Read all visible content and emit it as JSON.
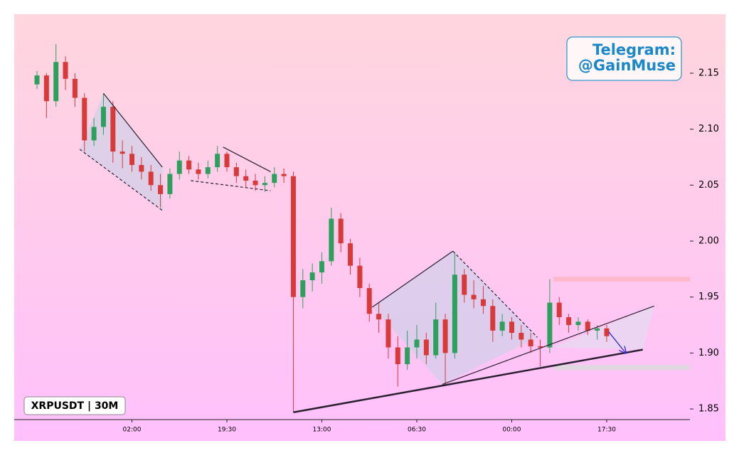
{
  "chart_data": {
    "type": "candlestick",
    "title": "XRPUSDT | 30M",
    "annotation": [
      "Telegram:",
      "@GainMuse"
    ],
    "categories": [
      null,
      null,
      null,
      null,
      null,
      null,
      null,
      null,
      null,
      null,
      "02:00",
      null,
      null,
      null,
      null,
      null,
      null,
      null,
      null,
      null,
      "19:30",
      null,
      null,
      null,
      null,
      null,
      null,
      null,
      null,
      null,
      "13:00",
      null,
      null,
      null,
      null,
      null,
      null,
      null,
      null,
      null,
      "06:30",
      null,
      null,
      null,
      null,
      null,
      null,
      null,
      null,
      null,
      "00:00",
      null,
      null,
      null,
      null,
      null,
      null,
      null,
      null,
      null,
      "17:30"
    ],
    "open": [
      2.14,
      2.148,
      2.125,
      2.16,
      2.145,
      2.128,
      2.09,
      2.102,
      2.12,
      2.08,
      2.078,
      2.068,
      2.062,
      2.05,
      2.042,
      2.06,
      2.072,
      2.064,
      2.06,
      2.066,
      2.078,
      2.066,
      2.058,
      2.054,
      2.05,
      2.052,
      2.06,
      2.058,
      1.95,
      1.965,
      1.972,
      1.982,
      2.02,
      1.998,
      1.978,
      1.958,
      1.935,
      1.93,
      1.905,
      1.89,
      1.905,
      1.912,
      1.898,
      1.93,
      1.9,
      1.97,
      1.952,
      1.948,
      1.942,
      1.92,
      1.928,
      1.918,
      1.912,
      1.906,
      1.905,
      1.945,
      1.932,
      1.925,
      1.928,
      1.92,
      1.922
    ],
    "high": [
      2.152,
      2.15,
      2.176,
      2.165,
      2.15,
      2.132,
      2.11,
      2.132,
      2.125,
      2.09,
      2.085,
      2.075,
      2.068,
      2.06,
      2.065,
      2.08,
      2.076,
      2.07,
      2.072,
      2.085,
      2.08,
      2.07,
      2.064,
      2.06,
      2.058,
      2.066,
      2.065,
      2.062,
      1.975,
      1.98,
      1.99,
      2.03,
      2.025,
      2.002,
      1.985,
      1.962,
      1.945,
      1.935,
      1.915,
      1.92,
      1.925,
      1.918,
      1.945,
      1.935,
      1.99,
      1.975,
      1.965,
      1.96,
      1.948,
      1.935,
      1.932,
      1.925,
      1.918,
      1.912,
      1.966,
      1.95,
      1.935,
      1.932,
      1.93,
      1.925,
      1.925
    ],
    "low": [
      2.136,
      2.11,
      2.12,
      2.135,
      2.12,
      2.08,
      2.085,
      2.095,
      2.07,
      2.065,
      2.062,
      2.055,
      2.045,
      2.03,
      2.038,
      2.055,
      2.06,
      2.055,
      2.056,
      2.062,
      2.062,
      2.052,
      2.048,
      2.045,
      2.044,
      2.048,
      2.052,
      1.847,
      1.94,
      1.955,
      1.962,
      1.978,
      1.99,
      1.97,
      1.95,
      1.928,
      1.918,
      1.895,
      1.87,
      1.885,
      1.895,
      1.89,
      1.895,
      1.872,
      1.895,
      1.945,
      1.94,
      1.935,
      1.91,
      1.915,
      1.912,
      1.905,
      1.9,
      1.888,
      1.9,
      1.925,
      1.918,
      1.92,
      1.916,
      1.912,
      1.91
    ],
    "close": [
      2.148,
      2.125,
      2.16,
      2.145,
      2.128,
      2.09,
      2.102,
      2.12,
      2.08,
      2.078,
      2.068,
      2.062,
      2.05,
      2.042,
      2.06,
      2.072,
      2.064,
      2.06,
      2.066,
      2.078,
      2.066,
      2.058,
      2.054,
      2.05,
      2.052,
      2.06,
      2.058,
      1.95,
      1.965,
      1.972,
      1.982,
      2.02,
      1.998,
      1.978,
      1.958,
      1.935,
      1.93,
      1.905,
      1.89,
      1.905,
      1.912,
      1.898,
      1.93,
      1.9,
      1.97,
      1.952,
      1.948,
      1.942,
      1.92,
      1.928,
      1.918,
      1.912,
      1.906,
      1.905,
      1.945,
      1.932,
      1.925,
      1.928,
      1.92,
      1.922,
      1.915
    ],
    "up_color": "#2ea05e",
    "down_color": "#d83a3a",
    "ylim": [
      1.8405,
      2.2027
    ],
    "yticks": [
      1.85,
      {
        "value": 1.9,
        "label": "1.90"
      },
      1.95,
      {
        "value": 2.0,
        "label": "2.00"
      },
      2.05,
      {
        "value": 2.1,
        "label": "2.10"
      },
      2.15
    ],
    "fills": [
      {
        "points": [
          [
            7.0,
            2.132
          ],
          [
            13.2,
            2.066
          ],
          [
            13.26,
            2.027
          ],
          [
            4.5,
            2.082
          ]
        ],
        "color": "#c8d0e8"
      },
      {
        "points": [
          [
            35.3,
            1.941
          ],
          [
            43.8,
            1.991
          ],
          [
            52.7,
            1.914
          ],
          [
            42.7,
            1.872
          ]
        ],
        "color": "#c8d0e8"
      },
      {
        "points": [
          [
            54.4,
            1.905
          ],
          [
            65.0,
            1.942
          ],
          [
            63.8,
            1.903
          ]
        ],
        "color": "#e0e0f0"
      }
    ],
    "lines": [
      {
        "points": [
          [
            7.0,
            2.132
          ],
          [
            13.2,
            2.066
          ]
        ],
        "dashed": false,
        "width": 1.2
      },
      {
        "points": [
          [
            4.5,
            2.082
          ],
          [
            13.26,
            2.027
          ]
        ],
        "dashed": true,
        "width": 1.2
      },
      {
        "points": [
          [
            19.6,
            2.084
          ],
          [
            24.6,
            2.062
          ]
        ],
        "dashed": false,
        "width": 1.2
      },
      {
        "points": [
          [
            16.2,
            2.054
          ],
          [
            24.6,
            2.045
          ]
        ],
        "dashed": true,
        "width": 1.2
      },
      {
        "points": [
          [
            35.3,
            1.941
          ],
          [
            43.8,
            1.991
          ]
        ],
        "dashed": false,
        "width": 1.2
      },
      {
        "points": [
          [
            43.8,
            1.991
          ],
          [
            52.7,
            1.914
          ]
        ],
        "dashed": true,
        "width": 1.2
      },
      {
        "points": [
          [
            42.7,
            1.872
          ],
          [
            65.0,
            1.942
          ]
        ],
        "dashed": false,
        "width": 1.2
      },
      {
        "points": [
          [
            27.0,
            1.847
          ],
          [
            63.8,
            1.903
          ]
        ],
        "dashed": false,
        "width": 2.5
      }
    ],
    "zones": [
      {
        "y": 1.966,
        "from": 54.4,
        "color": "#ffb6c8"
      },
      {
        "y": 1.887,
        "from": 54.4,
        "color": "#dcdcdc"
      }
    ],
    "arrow": {
      "points": [
        [
          60.2,
          1.919
        ],
        [
          62.0,
          1.9
        ]
      ],
      "color": "#2a2ad0"
    }
  }
}
